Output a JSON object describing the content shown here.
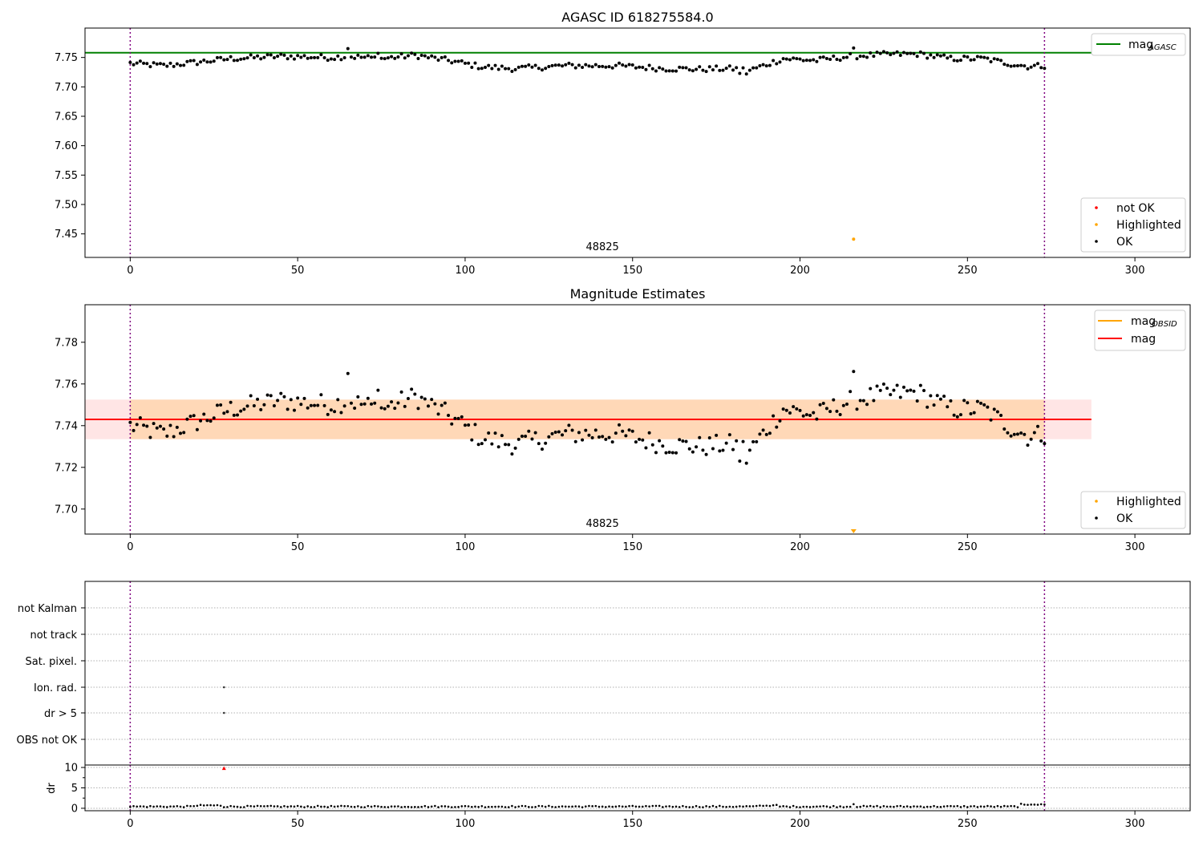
{
  "chart_data": [
    {
      "type": "scatter",
      "title": "AGASC ID 618275584.0",
      "xlim": [
        -13.5,
        316.5
      ],
      "ylim": [
        7.41,
        7.8
      ],
      "xticks": [
        "0",
        "50",
        "100",
        "150",
        "200",
        "250",
        "300"
      ],
      "yticks": [
        "7.45",
        "7.50",
        "7.55",
        "7.60",
        "7.65",
        "7.70",
        "7.75"
      ],
      "obsid_label": "48825",
      "obsid_boundaries": [
        0,
        273
      ],
      "mag_agasc": 7.758,
      "highlighted_point": {
        "x": 216,
        "y": 7.441
      },
      "legend_lines": [
        {
          "label": "mag",
          "sub": "AGASC",
          "color": "#008000"
        }
      ],
      "legend_points": [
        {
          "label": "not OK",
          "color": "#ff0000"
        },
        {
          "label": "Highlighted",
          "color": "#ffa500"
        },
        {
          "label": "OK",
          "color": "#000000"
        }
      ]
    },
    {
      "type": "scatter",
      "title": "Magnitude Estimates",
      "xlim": [
        -13.5,
        316.5
      ],
      "ylim": [
        7.688,
        7.798
      ],
      "xticks": [
        "0",
        "50",
        "100",
        "150",
        "200",
        "250",
        "300"
      ],
      "yticks": [
        "7.70",
        "7.72",
        "7.74",
        "7.76",
        "7.78"
      ],
      "obsid_label": "48825",
      "mag": 7.743,
      "mag_band": [
        7.7335,
        7.7525
      ],
      "obsid_band": [
        7.7335,
        7.7525
      ],
      "highlighted_point": {
        "x": 216,
        "y": 7.689
      },
      "legend_lines": [
        {
          "label": "mag",
          "sub": "OBSID",
          "color": "#ffa500"
        },
        {
          "label": "mag",
          "sub": "",
          "color": "#ff0000"
        }
      ],
      "legend_points": [
        {
          "label": "Highlighted",
          "color": "#ffa500"
        },
        {
          "label": "OK",
          "color": "#000000"
        }
      ]
    },
    {
      "type": "scatter",
      "title": "",
      "xlim": [
        -13.5,
        316.5
      ],
      "categories": [
        "not Kalman",
        "not track",
        "Sat. pixel.",
        "Ion. rad.",
        "dr > 5",
        "OBS not OK"
      ],
      "flag_points": [
        {
          "category": "Ion. rad.",
          "x": 28
        },
        {
          "category": "dr > 5",
          "x": 28
        }
      ]
    },
    {
      "type": "scatter",
      "title": "",
      "xlim": [
        -13.5,
        316.5
      ],
      "ylim": [
        -0.6,
        10.6
      ],
      "xticks": [
        "0",
        "50",
        "100",
        "150",
        "200",
        "250",
        "300"
      ],
      "yticks": [
        "0",
        "5",
        "10"
      ],
      "ylabel": "dr",
      "outlier_point": {
        "x": 28,
        "y": 9.8
      }
    }
  ]
}
